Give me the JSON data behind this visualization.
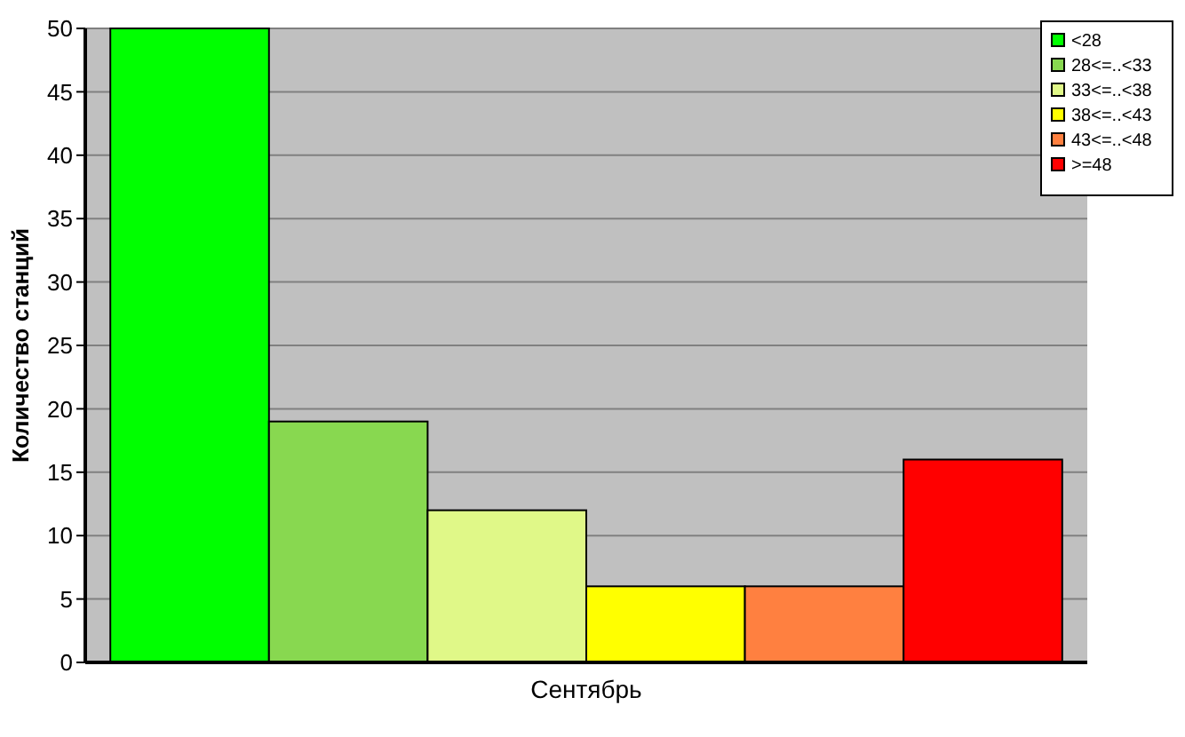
{
  "chart_data": {
    "type": "bar",
    "ylabel": "Количество станций",
    "categories": [
      "Сентябрь"
    ],
    "series": [
      {
        "name": "<28",
        "color": "#00ff00",
        "values": [
          50
        ]
      },
      {
        "name": "28<=..<33",
        "color": "#88d850",
        "values": [
          19
        ]
      },
      {
        "name": "33<=..<38",
        "color": "#e0f888",
        "values": [
          12
        ]
      },
      {
        "name": "38<=..<43",
        "color": "#ffff00",
        "values": [
          6
        ]
      },
      {
        "name": "43<=..<48",
        "color": "#ff8040",
        "values": [
          6
        ]
      },
      {
        "name": ">=48",
        "color": "#ff0000",
        "values": [
          16
        ]
      }
    ],
    "ylim": [
      0,
      50
    ],
    "yticks": [
      0,
      5,
      10,
      15,
      20,
      25,
      30,
      35,
      40,
      45,
      50
    ],
    "grid": "y",
    "legend": "top right"
  }
}
